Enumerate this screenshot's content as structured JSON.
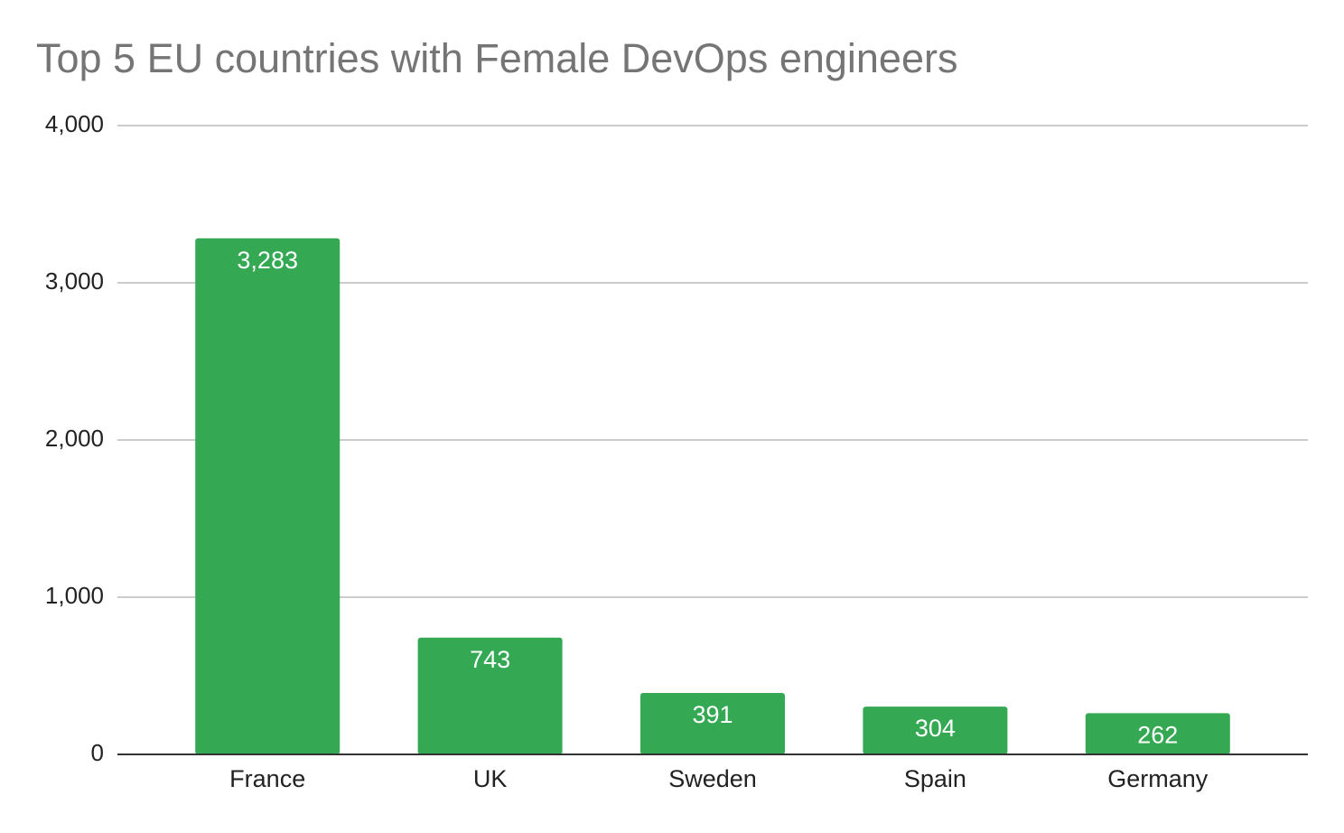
{
  "chart_data": {
    "type": "bar",
    "title": "Top 5 EU countries with Female DevOps engineers",
    "categories": [
      "France",
      "UK",
      "Sweden",
      "Spain",
      "Germany"
    ],
    "values": [
      3283,
      743,
      391,
      304,
      262
    ],
    "value_labels": [
      "3,283",
      "743",
      "391",
      "304",
      "262"
    ],
    "color": "#34a853",
    "ylim": [
      0,
      4000
    ],
    "yticks": [
      0,
      {
        "value": 1000,
        "label": "1,000"
      },
      {
        "value": 2000,
        "label": "2,000"
      },
      {
        "value": 3000,
        "label": "3,000"
      },
      {
        "value": 4000,
        "label": "4,000"
      }
    ],
    "grid": true
  }
}
